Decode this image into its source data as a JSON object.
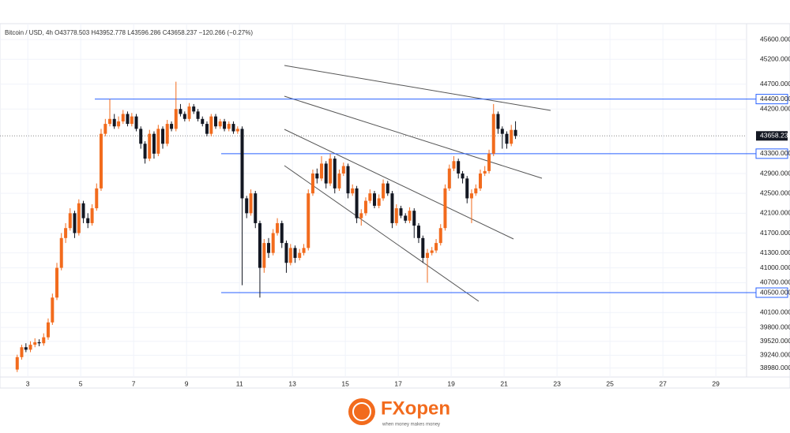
{
  "chart_data": {
    "type": "candlestick",
    "title": "Bitcoin / USD, 4h  O43778.503  H43952.778  L43596.286  C43658.237  −120.266 (−0.27%)",
    "up_color": "#f26b1d",
    "down_color": "#131722",
    "grid": true,
    "xlim": [
      1.95,
      30.16
    ],
    "xticks": [
      3,
      5,
      7,
      9,
      11,
      13,
      15,
      17,
      19,
      21,
      23,
      25,
      27,
      29
    ],
    "ylim": [
      38800,
      45840
    ],
    "yticks": [
      {
        "value": 45600,
        "label": "45600.000"
      },
      {
        "value": 45200,
        "label": "45200.000"
      },
      {
        "value": 44700,
        "label": "44700.000"
      },
      {
        "value": 44200,
        "label": "44200.000"
      },
      {
        "value": 42900,
        "label": "42900.000"
      },
      {
        "value": 42500,
        "label": "42500.000"
      },
      {
        "value": 42100,
        "label": "42100.000"
      },
      {
        "value": 41700,
        "label": "41700.000"
      },
      {
        "value": 41300,
        "label": "41300.000"
      },
      {
        "value": 41000,
        "label": "41000.000"
      },
      {
        "value": 40700,
        "label": "40700.000"
      },
      {
        "value": 40100,
        "label": "40100.000"
      },
      {
        "value": 39800,
        "label": "39800.000"
      },
      {
        "value": 39520,
        "label": "39520.000"
      },
      {
        "value": 39240,
        "label": "39240.000"
      },
      {
        "value": 38980,
        "label": "38980.000"
      }
    ],
    "hlines": [
      {
        "value": 44400,
        "label": "44400.000"
      },
      {
        "value": 43300,
        "label": "43300.000"
      },
      {
        "value": 40500,
        "label": "40500.000"
      }
    ],
    "last_price": {
      "value": 43658.237,
      "label": "43658.237"
    },
    "x": [
      2.6,
      2.77,
      2.93,
      3.1,
      3.27,
      3.43,
      3.6,
      3.77,
      3.93,
      4.1,
      4.27,
      4.43,
      4.6,
      4.77,
      4.93,
      5.1,
      5.27,
      5.43,
      5.6,
      5.77,
      5.93,
      6.1,
      6.27,
      6.43,
      6.6,
      6.77,
      6.93,
      7.1,
      7.27,
      7.43,
      7.6,
      7.77,
      7.93,
      8.1,
      8.27,
      8.43,
      8.6,
      8.77,
      8.93,
      9.1,
      9.27,
      9.43,
      9.6,
      9.77,
      9.93,
      10.1,
      10.27,
      10.43,
      10.6,
      10.77,
      10.93,
      11.1,
      11.27,
      11.43,
      11.6,
      11.77,
      11.93,
      12.1,
      12.27,
      12.43,
      12.6,
      12.77,
      12.93,
      13.1,
      13.27,
      13.43,
      13.6,
      13.77,
      13.93,
      14.1,
      14.27,
      14.43,
      14.6,
      14.77,
      14.93,
      15.1,
      15.27,
      15.43,
      15.6,
      15.77,
      15.93,
      16.1,
      16.27,
      16.43,
      16.6,
      16.77,
      16.93,
      17.1,
      17.27,
      17.43,
      17.6,
      17.77,
      17.93,
      18.1,
      18.27,
      18.43,
      18.6,
      18.77,
      18.93,
      19.1,
      19.27,
      19.43,
      19.6,
      19.77,
      19.93,
      20.1,
      20.27,
      20.43,
      20.6,
      20.77,
      20.93,
      21.1,
      21.27,
      21.43
    ],
    "open": [
      38950,
      39200,
      39400,
      39350,
      39450,
      39500,
      39480,
      39600,
      39900,
      40400,
      41000,
      41600,
      41800,
      42100,
      41700,
      42300,
      42000,
      41900,
      42200,
      42600,
      43700,
      43900,
      44000,
      43850,
      43950,
      44100,
      43900,
      44050,
      43800,
      43500,
      43200,
      43700,
      43300,
      43800,
      43500,
      43900,
      43800,
      44200,
      44100,
      44000,
      44250,
      44150,
      44000,
      43900,
      43700,
      44050,
      43850,
      43950,
      43800,
      43900,
      43750,
      43800,
      42400,
      42100,
      42500,
      41900,
      41000,
      41500,
      41300,
      41700,
      41900,
      41500,
      41100,
      41400,
      41200,
      41300,
      41400,
      42500,
      42900,
      42800,
      43100,
      42700,
      43200,
      42600,
      42900,
      43050,
      42500,
      42600,
      42000,
      42100,
      42350,
      42500,
      42250,
      42400,
      42700,
      42500,
      41900,
      42200,
      42050,
      41950,
      42150,
      41850,
      41600,
      41200,
      41300,
      41350,
      41500,
      41800,
      42600,
      43000,
      43150,
      42900,
      42800,
      42400,
      42500,
      42600,
      42900,
      42950,
      43300,
      44100,
      43800,
      43700,
      43500,
      43778.503
    ],
    "high": [
      39250,
      39450,
      39480,
      39520,
      39580,
      39560,
      39680,
      39980,
      40480,
      41100,
      41700,
      41900,
      42200,
      42150,
      42380,
      42350,
      42100,
      42280,
      42700,
      43800,
      44000,
      44400,
      44100,
      44050,
      44180,
      44150,
      44120,
      44100,
      43850,
      43550,
      43780,
      43750,
      43880,
      43850,
      43980,
      43950,
      44750,
      44300,
      44150,
      44320,
      44300,
      44200,
      44050,
      43950,
      44100,
      44100,
      44000,
      44000,
      43950,
      43950,
      43850,
      43850,
      42450,
      42580,
      42550,
      41950,
      41580,
      41600,
      41780,
      42000,
      41950,
      41550,
      41480,
      41450,
      41380,
      41480,
      42580,
      42980,
      43000,
      43250,
      43150,
      43300,
      43250,
      42980,
      43120,
      43100,
      42680,
      42650,
      42180,
      42420,
      42580,
      42550,
      42480,
      42780,
      42750,
      42550,
      42280,
      42250,
      42100,
      42220,
      42200,
      41900,
      41650,
      41380,
      41420,
      41580,
      41880,
      42680,
      43080,
      43250,
      43200,
      42950,
      42850,
      42580,
      42680,
      42980,
      43050,
      43380,
      44300,
      44150,
      43850,
      43750,
      43880,
      43952.778
    ],
    "low": [
      38900,
      39150,
      39300,
      39300,
      39400,
      39420,
      39430,
      39550,
      39850,
      40350,
      40950,
      41500,
      41750,
      41600,
      41650,
      41900,
      41800,
      41850,
      42150,
      42550,
      43650,
      43850,
      43800,
      43800,
      43900,
      43850,
      43850,
      43750,
      43400,
      43100,
      43150,
      43200,
      43250,
      43400,
      43450,
      43750,
      43750,
      44050,
      43950,
      43950,
      44100,
      43950,
      43850,
      43650,
      43650,
      43800,
      43800,
      43750,
      43750,
      43700,
      43700,
      40650,
      42000,
      42050,
      41800,
      40400,
      40900,
      41200,
      41250,
      41650,
      41400,
      40900,
      41050,
      41100,
      41150,
      41250,
      41350,
      42450,
      42700,
      42750,
      42600,
      42650,
      42500,
      42550,
      42850,
      42400,
      42450,
      41900,
      41850,
      42050,
      42300,
      42200,
      42200,
      42350,
      42450,
      41800,
      41850,
      42000,
      41900,
      41900,
      41600,
      41500,
      41100,
      40700,
      41250,
      41300,
      41450,
      41750,
      42550,
      42950,
      42800,
      42700,
      42300,
      41900,
      42450,
      42550,
      42850,
      42900,
      43250,
      43700,
      43400,
      43400,
      43450,
      43596.286
    ],
    "close": [
      39200,
      39400,
      39350,
      39450,
      39500,
      39480,
      39600,
      39900,
      40400,
      41000,
      41600,
      41800,
      42100,
      41700,
      42300,
      42000,
      41900,
      42200,
      42600,
      43700,
      43900,
      44000,
      43850,
      43950,
      44100,
      43900,
      44050,
      43800,
      43500,
      43200,
      43700,
      43300,
      43800,
      43500,
      43900,
      43800,
      44200,
      44100,
      44000,
      44250,
      44150,
      44000,
      43900,
      43700,
      44050,
      43850,
      43950,
      43800,
      43900,
      43750,
      43800,
      42400,
      42100,
      42500,
      41900,
      41000,
      41500,
      41300,
      41700,
      41900,
      41500,
      41100,
      41400,
      41200,
      41300,
      41400,
      42500,
      42900,
      42800,
      43100,
      42700,
      43200,
      42600,
      42900,
      43050,
      42500,
      42600,
      42000,
      42100,
      42350,
      42500,
      42250,
      42400,
      42700,
      42500,
      41900,
      42200,
      42050,
      41950,
      42150,
      41850,
      41600,
      41200,
      41300,
      41350,
      41500,
      41800,
      42600,
      43000,
      43150,
      42900,
      42800,
      42400,
      42500,
      42600,
      42900,
      42950,
      43300,
      44100,
      43800,
      43700,
      43500,
      43778.503,
      43658.237
    ]
  },
  "logo": {
    "name": "FXopen",
    "tagline": "when money makes money"
  }
}
